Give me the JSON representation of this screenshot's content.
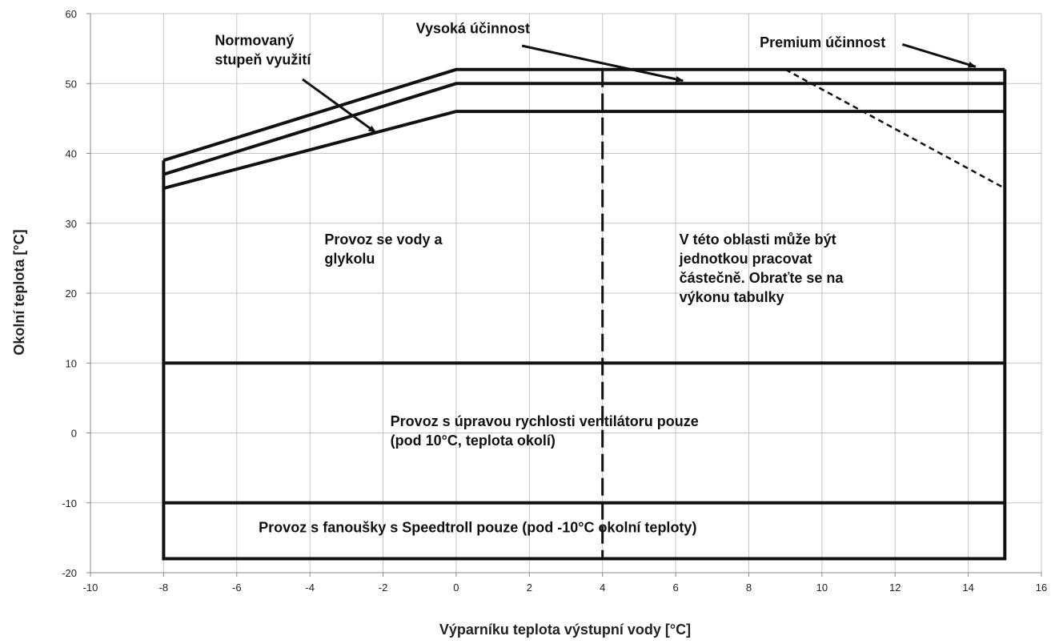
{
  "chart_data": {
    "type": "line",
    "title": "",
    "xlabel": "Výparníku teplota výstupní vody [°C]",
    "ylabel": "Okolní teplota [°C]",
    "xlim": [
      -10,
      16
    ],
    "ylim": [
      -20,
      60
    ],
    "x_ticks": [
      -10,
      -8,
      -6,
      -4,
      -2,
      0,
      2,
      4,
      6,
      8,
      10,
      12,
      14,
      16
    ],
    "y_ticks": [
      -20,
      -10,
      0,
      10,
      20,
      30,
      40,
      50,
      60
    ],
    "grid": true,
    "series": [
      {
        "name": "Premium účinnost",
        "style": "solid",
        "points": [
          [
            -8,
            39
          ],
          [
            0,
            52
          ],
          [
            15,
            52
          ]
        ]
      },
      {
        "name": "Vysoká účinnost",
        "style": "solid",
        "points": [
          [
            -8,
            37
          ],
          [
            0,
            50
          ],
          [
            15,
            50
          ]
        ]
      },
      {
        "name": "Normovaný stupeň využití",
        "style": "solid",
        "points": [
          [
            -8,
            35
          ],
          [
            0,
            46
          ],
          [
            15,
            46
          ]
        ]
      },
      {
        "name": "",
        "style": "solid",
        "points": [
          [
            -8,
            39
          ],
          [
            -8,
            -18
          ],
          [
            15,
            -18
          ],
          [
            15,
            52
          ]
        ]
      },
      {
        "name": "",
        "style": "solid",
        "points": [
          [
            -8,
            10
          ],
          [
            15,
            10
          ]
        ]
      },
      {
        "name": "",
        "style": "solid",
        "points": [
          [
            -8,
            -10
          ],
          [
            15,
            -10
          ]
        ]
      },
      {
        "name": "",
        "style": "dashed",
        "points": [
          [
            4,
            52
          ],
          [
            4,
            -18
          ]
        ]
      },
      {
        "name": "",
        "style": "dotted",
        "points": [
          [
            9,
            52
          ],
          [
            15,
            35
          ]
        ]
      }
    ],
    "annotations": [
      {
        "id": "normovany",
        "lines": [
          "Normovaný",
          "stupeň využití"
        ],
        "x": -6.6,
        "y": 55.5,
        "arrow_from": [
          -4.2,
          50.6
        ],
        "arrow_to": [
          -2.2,
          43.0
        ]
      },
      {
        "id": "vysoka",
        "lines": [
          "Vysoká účinnost"
        ],
        "x": -1.1,
        "y": 57.2,
        "arrow_from": [
          1.8,
          55.4
        ],
        "arrow_to": [
          6.2,
          50.4
        ]
      },
      {
        "id": "premium",
        "lines": [
          "Premium účinnost"
        ],
        "x": 8.3,
        "y": 55.2,
        "arrow_from": [
          12.2,
          55.6
        ],
        "arrow_to": [
          14.2,
          52.4
        ]
      },
      {
        "id": "voda-glykol",
        "lines": [
          "Provoz se vody a",
          "glykolu"
        ],
        "x": -3.6,
        "y": 27.0,
        "arrow_from": null,
        "arrow_to": null
      },
      {
        "id": "oblast",
        "lines": [
          "V této oblasti může být",
          "jednotkou pracovat",
          "částečně. Obraťte se na",
          "výkonu tabulky"
        ],
        "x": 6.1,
        "y": 27.0,
        "arrow_from": null,
        "arrow_to": null
      },
      {
        "id": "ventilator",
        "lines": [
          "Provoz s úpravou rychlosti ventilátoru pouze",
          "(pod 10°C, teplota okolí)"
        ],
        "x": -1.8,
        "y": 1.0,
        "arrow_from": null,
        "arrow_to": null
      },
      {
        "id": "speedtroll",
        "lines": [
          "Provoz s fanoušky s Speedtroll pouze (pod -10°C okolní teploty)"
        ],
        "x": -5.4,
        "y": -14.2,
        "arrow_from": null,
        "arrow_to": null
      }
    ]
  }
}
